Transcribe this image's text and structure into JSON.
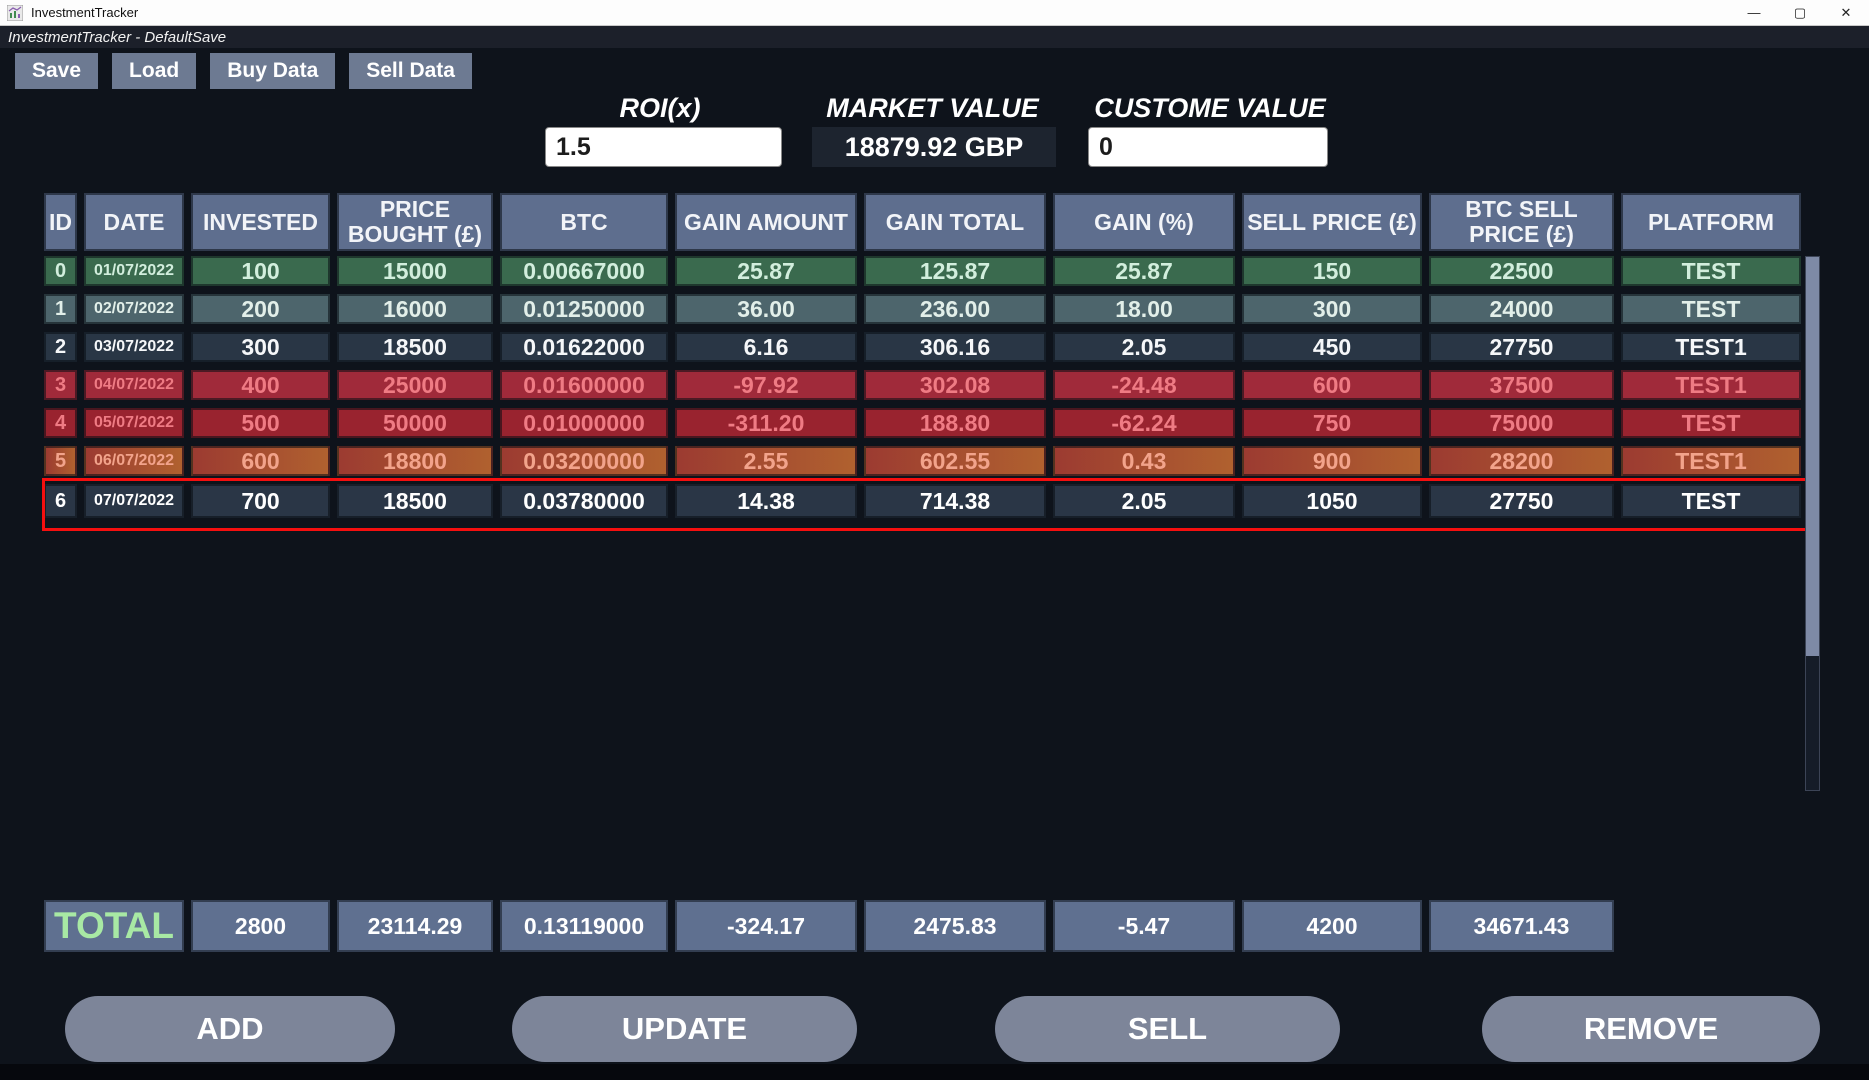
{
  "window": {
    "title": "InvestmentTracker",
    "subtitle": "InvestmentTracker - DefaultSave",
    "minimize_icon": "—",
    "maximize_icon": "▢",
    "close_icon": "✕"
  },
  "toolbar": {
    "save_label": "Save",
    "load_label": "Load",
    "buy_data_label": "Buy Data",
    "sell_data_label": "Sell Data"
  },
  "summary": {
    "roi_label": "ROI(x)",
    "roi_value": "1.5",
    "market_label": "MARKET VALUE",
    "market_value": "18879.92 GBP",
    "custom_label": "CUSTOME VALUE",
    "custom_value": "0"
  },
  "table": {
    "headers": [
      "ID",
      "DATE",
      "INVESTED",
      "PRICE BOUGHT (£)",
      "BTC",
      "GAIN AMOUNT",
      "GAIN TOTAL",
      "GAIN (%)",
      "SELL PRICE (£)",
      "BTC SELL PRICE (£)",
      "PLATFORM"
    ],
    "rows": [
      {
        "id": "0",
        "date": "01/07/2022",
        "invested": "100",
        "price_bought": "15000",
        "btc": "0.00667000",
        "gain_amount": "25.87",
        "gain_total": "125.87",
        "gain_pct": "25.87",
        "sell_price": "150",
        "btc_sell_price": "22500",
        "platform": "TEST",
        "style": "green"
      },
      {
        "id": "1",
        "date": "02/07/2022",
        "invested": "200",
        "price_bought": "16000",
        "btc": "0.01250000",
        "gain_amount": "36.00",
        "gain_total": "236.00",
        "gain_pct": "18.00",
        "sell_price": "300",
        "btc_sell_price": "24000",
        "platform": "TEST",
        "style": "teal"
      },
      {
        "id": "2",
        "date": "03/07/2022",
        "invested": "300",
        "price_bought": "18500",
        "btc": "0.01622000",
        "gain_amount": "6.16",
        "gain_total": "306.16",
        "gain_pct": "2.05",
        "sell_price": "450",
        "btc_sell_price": "27750",
        "platform": "TEST1",
        "style": "dark"
      },
      {
        "id": "3",
        "date": "04/07/2022",
        "invested": "400",
        "price_bought": "25000",
        "btc": "0.01600000",
        "gain_amount": "-97.92",
        "gain_total": "302.08",
        "gain_pct": "-24.48",
        "sell_price": "600",
        "btc_sell_price": "37500",
        "platform": "TEST1",
        "style": "red"
      },
      {
        "id": "4",
        "date": "05/07/2022",
        "invested": "500",
        "price_bought": "50000",
        "btc": "0.01000000",
        "gain_amount": "-311.20",
        "gain_total": "188.80",
        "gain_pct": "-62.24",
        "sell_price": "750",
        "btc_sell_price": "75000",
        "platform": "TEST",
        "style": "red2"
      },
      {
        "id": "5",
        "date": "06/07/2022",
        "invested": "600",
        "price_bought": "18800",
        "btc": "0.03200000",
        "gain_amount": "2.55",
        "gain_total": "602.55",
        "gain_pct": "0.43",
        "sell_price": "900",
        "btc_sell_price": "28200",
        "platform": "TEST1",
        "style": "orange"
      },
      {
        "id": "6",
        "date": "07/07/2022",
        "invested": "700",
        "price_bought": "18500",
        "btc": "0.03780000",
        "gain_amount": "14.38",
        "gain_total": "714.38",
        "gain_pct": "2.05",
        "sell_price": "1050",
        "btc_sell_price": "27750",
        "platform": "TEST",
        "style": "sel",
        "selected": true
      }
    ],
    "total": {
      "label": "TOTAL",
      "invested": "2800",
      "price_bought": "23114.29",
      "btc": "0.13119000",
      "gain_amount": "-324.17",
      "gain_total": "2475.83",
      "gain_pct": "-5.47",
      "sell_price": "4200",
      "btc_sell_price": "34671.43"
    }
  },
  "actions": {
    "add_label": "ADD",
    "update_label": "UPDATE",
    "sell_label": "SELL",
    "remove_label": "REMOVE"
  },
  "colors": {
    "page_background": "#0e131b",
    "header_cell": "#5e6e8e",
    "row_gain_green": "#3a6a4e",
    "row_gain_teal": "#4d656c",
    "row_neutral_dark": "#293645",
    "row_loss_red": "#a02a3a",
    "row_loss_red_dark": "#99232f",
    "row_warn_orange": "#a7552f",
    "selection_outline": "#f50f0f",
    "total_label_green": "#a8e9a4",
    "button_gray": "#7d8599",
    "toolbar_button": "#6d7a92"
  }
}
